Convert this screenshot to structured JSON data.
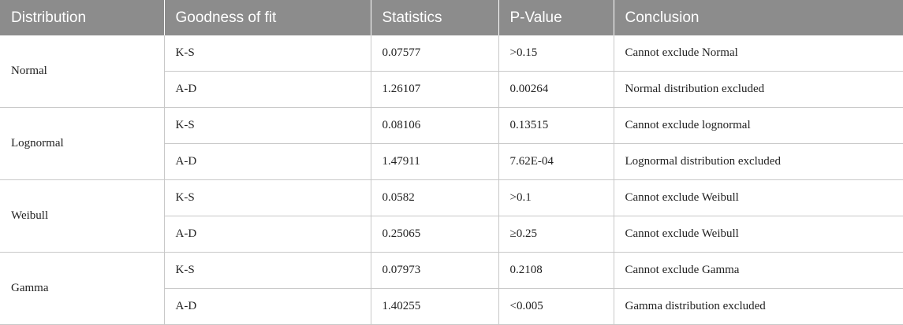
{
  "headers": [
    "Distribution",
    "Goodness of fit",
    "Statistics",
    "P-Value",
    "Conclusion"
  ],
  "groups": [
    {
      "distribution": "Normal",
      "rows": [
        {
          "fit": "K-S",
          "statistic": "0.07577",
          "p_value": ">0.15",
          "conclusion": "Cannot exclude Normal"
        },
        {
          "fit": "A-D",
          "statistic": "1.26107",
          "p_value": "0.00264",
          "conclusion": "Normal distribution excluded"
        }
      ]
    },
    {
      "distribution": "Lognormal",
      "rows": [
        {
          "fit": "K-S",
          "statistic": "0.08106",
          "p_value": "0.13515",
          "conclusion": "Cannot exclude lognormal"
        },
        {
          "fit": "A-D",
          "statistic": "1.47911",
          "p_value": "7.62E-04",
          "conclusion": "Lognormal distribution excluded"
        }
      ]
    },
    {
      "distribution": "Weibull",
      "rows": [
        {
          "fit": "K-S",
          "statistic": "0.0582",
          "p_value": ">0.1",
          "conclusion": "Cannot exclude Weibull"
        },
        {
          "fit": "A-D",
          "statistic": "0.25065",
          "p_value": "≥0.25",
          "conclusion": "Cannot exclude Weibull"
        }
      ]
    },
    {
      "distribution": "Gamma",
      "rows": [
        {
          "fit": "K-S",
          "statistic": "0.07973",
          "p_value": "0.2108",
          "conclusion": "Cannot exclude Gamma"
        },
        {
          "fit": "A-D",
          "statistic": "1.40255",
          "p_value": "<0.005",
          "conclusion": "Gamma distribution excluded"
        }
      ]
    }
  ]
}
